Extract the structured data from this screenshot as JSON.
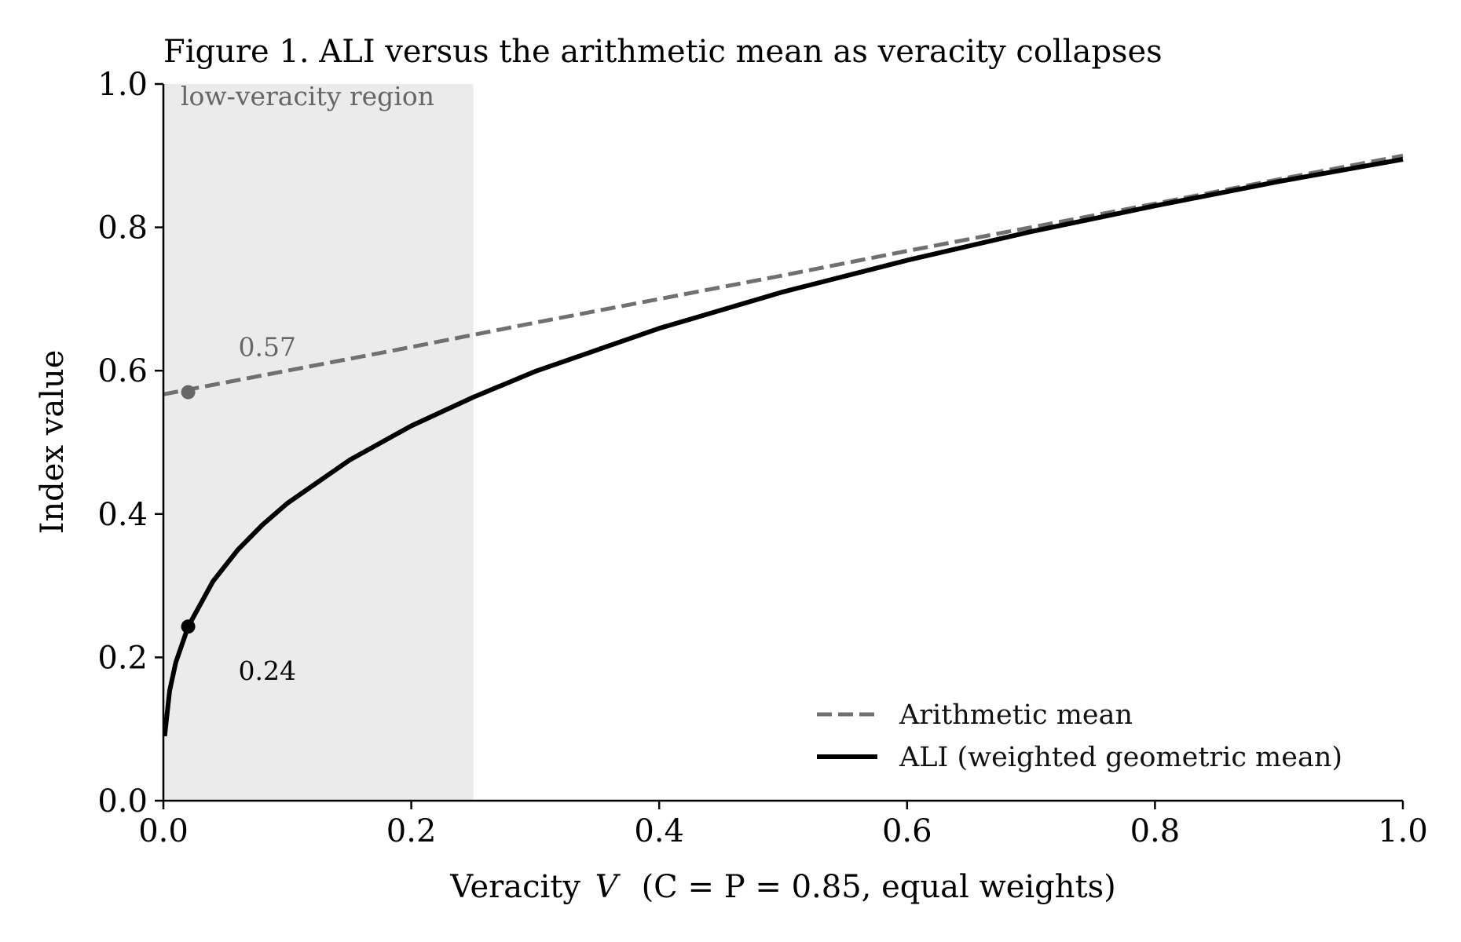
{
  "chart_data": {
    "type": "line",
    "title": "Figure 1. ALI versus the arithmetic mean as veracity collapses",
    "xlabel_prefix": "Veracity ",
    "xlabel_var": "V",
    "xlabel_suffix": "(C = P = 0.85, equal weights)",
    "ylabel": "Index value",
    "xlim": [
      0,
      1
    ],
    "ylim": [
      0,
      1
    ],
    "x_ticks": [
      "0.0",
      "0.2",
      "0.4",
      "0.6",
      "0.8",
      "1.0"
    ],
    "y_ticks": [
      "0.0",
      "0.2",
      "0.4",
      "0.6",
      "0.8",
      "1.0"
    ],
    "grid": false,
    "legend_position": "lower-right",
    "shaded_region": {
      "x_range": [
        0,
        0.25
      ],
      "label": "low-veracity region",
      "color": "#ebebeb"
    },
    "series": [
      {
        "name": "Arithmetic mean",
        "style": "dashed",
        "color": "#707070",
        "x": [
          0.0,
          0.1,
          0.2,
          0.3,
          0.4,
          0.5,
          0.6,
          0.7,
          0.8,
          0.9,
          1.0
        ],
        "y": [
          0.567,
          0.6,
          0.633,
          0.667,
          0.7,
          0.733,
          0.767,
          0.8,
          0.833,
          0.867,
          0.9
        ]
      },
      {
        "name": "ALI (weighted geometric mean)",
        "style": "solid",
        "color": "#000000",
        "x": [
          0.001,
          0.005,
          0.01,
          0.02,
          0.04,
          0.06,
          0.08,
          0.1,
          0.15,
          0.2,
          0.25,
          0.3,
          0.4,
          0.5,
          0.6,
          0.7,
          0.8,
          0.9,
          1.0
        ],
        "y": [
          0.09,
          0.153,
          0.193,
          0.243,
          0.306,
          0.35,
          0.385,
          0.415,
          0.475,
          0.523,
          0.563,
          0.599,
          0.659,
          0.71,
          0.754,
          0.794,
          0.83,
          0.864,
          0.895
        ]
      }
    ],
    "annotations": [
      {
        "label": "0.57",
        "x": 0.02,
        "y": 0.57,
        "color": "#666666"
      },
      {
        "label": "0.24",
        "x": 0.02,
        "y": 0.243,
        "color": "#000000"
      }
    ]
  }
}
